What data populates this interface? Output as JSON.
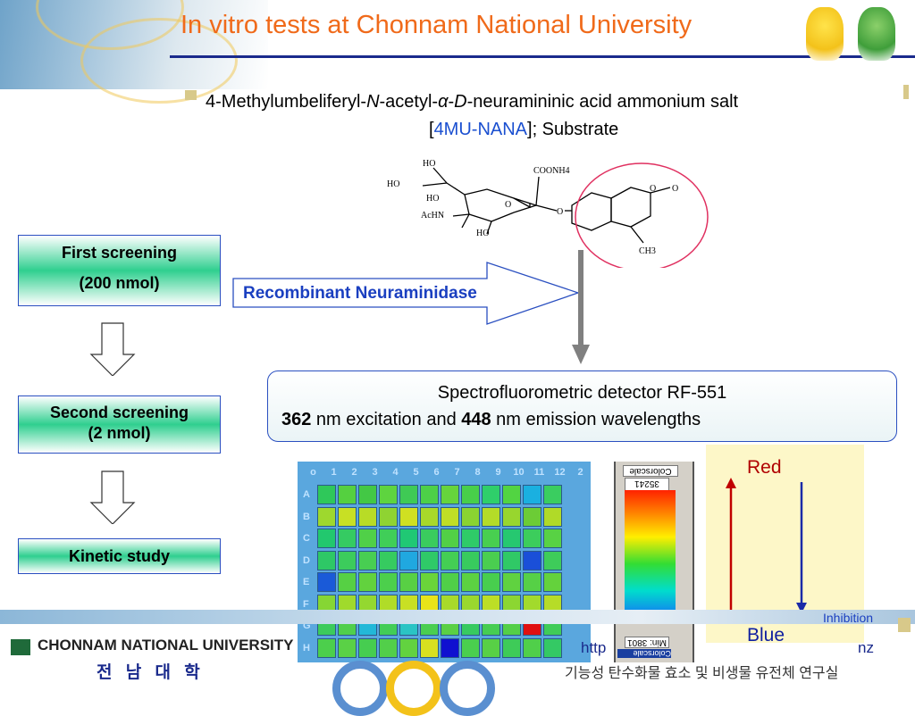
{
  "header": {
    "title": "In vitro tests at Chonnam National University"
  },
  "substrate": {
    "line1_a": "4-Methylumbeliferyl-",
    "line1_n": "N",
    "line1_b": "-acetyl-",
    "line1_alpha": "α",
    "line1_dash": "-",
    "line1_d": "D",
    "line1_c": "-neuramininic acid ammonium salt",
    "line2_open": "[",
    "line2_abbrev": "4MU-NANA",
    "line2_close": "]; Substrate"
  },
  "structure_labels": {
    "ho1": "HO",
    "ho2": "HO",
    "ho3": "HO",
    "ho4": "HO",
    "coonh4": "COONH4",
    "acHN": "AcHN",
    "o_ring": "O",
    "o_link": "O",
    "o_coumarin": "O",
    "o_carbonyl": "O",
    "ch3": "CH3"
  },
  "flow": {
    "first_screening": "First screening",
    "first_amount": "(200 nmol)",
    "second_screening": "Second screening",
    "second_amount": "(2 nmol)",
    "kinetic": "Kinetic study"
  },
  "enzyme_label": "Recombinant Neuraminidase",
  "detector": {
    "line1": "Spectrofluorometric detector RF-551",
    "excitation_value": "362",
    "excitation_text": " nm excitation and ",
    "emission_value": "448",
    "emission_text": " nm emission wavelengths"
  },
  "plate": {
    "columns": [
      "o",
      "1",
      "2",
      "3",
      "4",
      "5",
      "6",
      "7",
      "8",
      "9",
      "10",
      "11",
      "12",
      "2"
    ],
    "rows": [
      "A",
      "B",
      "C",
      "D",
      "E",
      "F",
      "G",
      "H"
    ],
    "well_colors": [
      [
        "#2fc85a",
        "#55d040",
        "#43c845",
        "#5ed43f",
        "#3fca55",
        "#4dd048",
        "#66d43c",
        "#48cf4a",
        "#2fcf6a",
        "#52d442",
        "#1ab0e0",
        "#3acd60"
      ],
      [
        "#9ed82e",
        "#c8e024",
        "#b8dc26",
        "#8fd332",
        "#d0e022",
        "#a8d82a",
        "#c0de26",
        "#8ad432",
        "#b4dc28",
        "#98d62e",
        "#6ccc36",
        "#b0da28"
      ],
      [
        "#22c86e",
        "#35cb62",
        "#50d048",
        "#40ce58",
        "#20c874",
        "#3acc5e",
        "#52d046",
        "#2fcb68",
        "#48cf50",
        "#26c870",
        "#3ccd5c",
        "#58d244"
      ],
      [
        "#2ec866",
        "#3ccc5c",
        "#48ce52",
        "#36cb60",
        "#20a8e0",
        "#2fc968",
        "#44ce54",
        "#38cb5e",
        "#4ace50",
        "#30c966",
        "#1a4fd8",
        "#3ecc5a"
      ],
      [
        "#1a5ad8",
        "#56d044",
        "#62d23e",
        "#4ccf4c",
        "#58d044",
        "#6ad43a",
        "#50cf48",
        "#5cd142",
        "#48ce4e",
        "#60d240",
        "#56d046",
        "#64d23c"
      ],
      [
        "#86d634",
        "#a0da2c",
        "#94d830",
        "#b0dc28",
        "#c8e024",
        "#e8e418",
        "#a8da2a",
        "#9ad82e",
        "#bcde26",
        "#8cd632",
        "#a2da2c",
        "#b6dc28"
      ],
      [
        "#3ccb5c",
        "#50cf4c",
        "#22b8d8",
        "#42cd56",
        "#2ac4c4",
        "#4ace50",
        "#5ad044",
        "#38ca60",
        "#46cd52",
        "#54cf48",
        "#e01010",
        "#40cc58"
      ],
      [
        "#4ccf4c",
        "#5ad146",
        "#46cd50",
        "#52cf4a",
        "#62d240",
        "#d8e020",
        "#1010d0",
        "#4acf4e",
        "#58d046",
        "#3ecb58",
        "#50cf4a",
        "#34c964"
      ]
    ]
  },
  "colorscale": {
    "title": "Colorscale",
    "max": "Max: 35241",
    "min": "Min: 3801",
    "footer": "Colorscale"
  },
  "legend": {
    "red": "Red",
    "blue": "Blue",
    "inhibition": "Inhibition",
    "red_color": "#c00000",
    "blue_color": "#1a2aa8"
  },
  "footer": {
    "university": "CHONNAM NATIONAL UNIVERSITY",
    "korean_university": "전 남 대 학",
    "url": "http",
    "url_end": "nz",
    "korean_lab": "기능성 탄수화물 효소 및 비생물 유전체 연구실"
  }
}
